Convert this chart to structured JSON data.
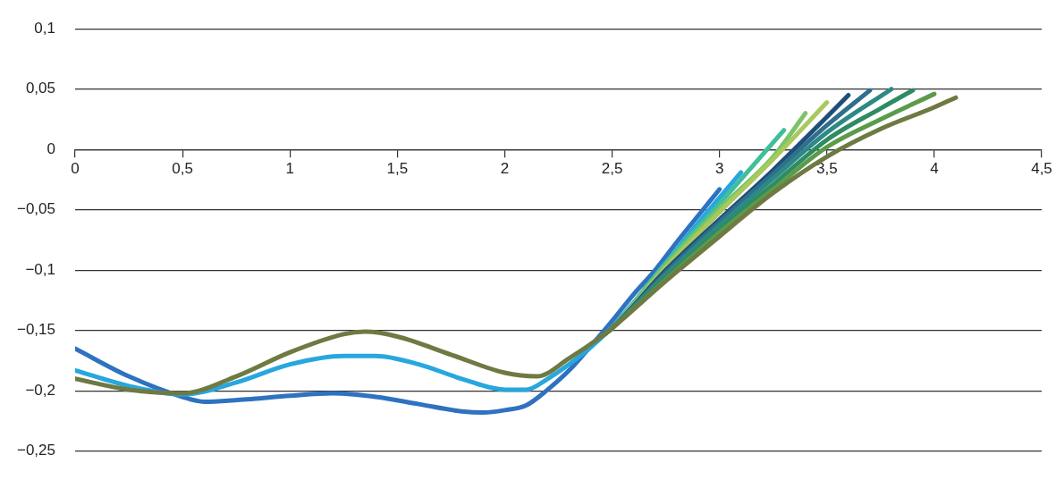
{
  "chart_data": {
    "type": "line",
    "xlim": [
      0,
      4.5
    ],
    "ylim": [
      -0.25,
      0.1
    ],
    "xticks": [
      0,
      {
        "value": 0.5,
        "label": "0,5"
      },
      1,
      {
        "value": 1.5,
        "label": "1,5"
      },
      2,
      {
        "value": 2.5,
        "label": "2,5"
      },
      3,
      {
        "value": 3.5,
        "label": "3,5"
      },
      4,
      {
        "value": 4.5,
        "label": "4,5"
      }
    ],
    "yticks": [
      {
        "value": -0.25,
        "label": "−0,25"
      },
      {
        "value": -0.2,
        "label": "−0,2"
      },
      {
        "value": -0.15,
        "label": "−0,15"
      },
      {
        "value": -0.1,
        "label": "−0,1"
      },
      {
        "value": -0.05,
        "label": "−0,05"
      },
      0,
      {
        "value": 0.05,
        "label": "0,05"
      },
      {
        "value": 0.1,
        "label": "0,1"
      }
    ],
    "grid": "y",
    "legend": false,
    "marker": "none",
    "line_style": "solid",
    "series": [
      {
        "color": "#2e72c0",
        "x": [
          0,
          0.25,
          0.5,
          0.6,
          0.8,
          1,
          1.2,
          1.4,
          1.6,
          1.8,
          1.9,
          2,
          2.1,
          2.2,
          2.3,
          2.4,
          2.5,
          2.6,
          2.7,
          2.8,
          2.9,
          3
        ],
        "values": [
          -0.165,
          -0.188,
          -0.205,
          -0.209,
          -0.207,
          -0.204,
          -0.202,
          -0.205,
          -0.211,
          -0.217,
          -0.218,
          -0.216,
          -0.212,
          -0.199,
          -0.183,
          -0.163,
          -0.142,
          -0.12,
          -0.1,
          -0.077,
          -0.055,
          -0.033
        ]
      },
      {
        "color": "#27a7de",
        "x": [
          0,
          0.25,
          0.5,
          0.75,
          1,
          1.25,
          1.4,
          1.6,
          1.8,
          2,
          2.1,
          2.2,
          2.3,
          2.4,
          2.5,
          2.6,
          2.7,
          2.8,
          2.9,
          3,
          3.1
        ],
        "values": [
          -0.183,
          -0.196,
          -0.203,
          -0.193,
          -0.178,
          -0.171,
          -0.171,
          -0.178,
          -0.19,
          -0.199,
          -0.199,
          -0.19,
          -0.178,
          -0.164,
          -0.147,
          -0.127,
          -0.105,
          -0.083,
          -0.061,
          -0.04,
          -0.019
        ]
      },
      {
        "color": "#3fbf9b",
        "x": [
          2.45,
          2.5,
          2.75,
          3,
          3.3
        ],
        "values": [
          -0.155,
          -0.148,
          -0.094,
          -0.045,
          0.016
        ]
      },
      {
        "color": "#7cc46a",
        "x": [
          2.45,
          2.5,
          2.75,
          3,
          3.25,
          3.4
        ],
        "values": [
          -0.155,
          -0.148,
          -0.096,
          -0.049,
          -0.006,
          0.03
        ]
      },
      {
        "color": "#a9c95c",
        "x": [
          2.45,
          2.5,
          2.75,
          3,
          3.25,
          3.5
        ],
        "values": [
          -0.155,
          -0.148,
          -0.098,
          -0.052,
          -0.008,
          0.039
        ]
      },
      {
        "color": "#1f4e79",
        "x": [
          2.45,
          2.5,
          2.75,
          3,
          3.25,
          3.5,
          3.6
        ],
        "values": [
          -0.155,
          -0.148,
          -0.1,
          -0.058,
          -0.017,
          0.027,
          0.045
        ]
      },
      {
        "color": "#2f6f8e",
        "x": [
          2.45,
          2.5,
          2.75,
          3,
          3.25,
          3.5,
          3.7
        ],
        "values": [
          -0.155,
          -0.148,
          -0.102,
          -0.06,
          -0.02,
          0.02,
          0.049
        ]
      },
      {
        "color": "#2d8986",
        "x": [
          2.45,
          2.5,
          2.75,
          3,
          3.25,
          3.5,
          3.8
        ],
        "values": [
          -0.155,
          -0.148,
          -0.104,
          -0.063,
          -0.024,
          0.014,
          0.05
        ]
      },
      {
        "color": "#2e8b63",
        "x": [
          2.45,
          2.5,
          2.75,
          3,
          3.25,
          3.5,
          3.75,
          3.9
        ],
        "values": [
          -0.155,
          -0.148,
          -0.106,
          -0.066,
          -0.029,
          0.008,
          0.034,
          0.049
        ]
      },
      {
        "color": "#5b9b4a",
        "x": [
          2.45,
          2.5,
          2.75,
          3,
          3.25,
          3.5,
          3.75,
          4
        ],
        "values": [
          -0.155,
          -0.148,
          -0.108,
          -0.069,
          -0.033,
          0.002,
          0.025,
          0.046
        ]
      },
      {
        "color": "#6e7a42",
        "x": [
          0,
          0.25,
          0.5,
          0.75,
          1,
          1.25,
          1.35,
          1.5,
          1.75,
          2,
          2.15,
          2.3,
          2.45,
          2.5,
          2.75,
          3,
          3.25,
          3.5,
          3.75,
          4,
          4.1
        ],
        "values": [
          -0.19,
          -0.199,
          -0.202,
          -0.188,
          -0.168,
          -0.153,
          -0.151,
          -0.155,
          -0.17,
          -0.185,
          -0.188,
          -0.173,
          -0.155,
          -0.148,
          -0.109,
          -0.072,
          -0.036,
          -0.006,
          0.017,
          0.035,
          0.043
        ]
      }
    ]
  }
}
